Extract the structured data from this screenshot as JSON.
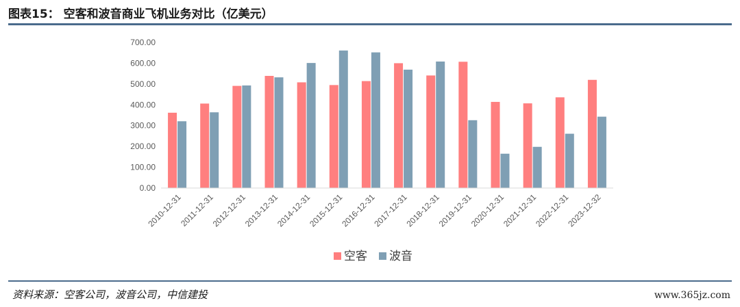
{
  "header": {
    "title": "图表15：   空客和波音商业飞机业务对比（亿美元）"
  },
  "footer": {
    "source": "资料来源：空客公司，波音公司，中信建投",
    "watermark": "www.365jz.com"
  },
  "colors": {
    "series1": "#FF7F7F",
    "series2": "#7F9FB4",
    "rule": "#4a6b8c",
    "axis": "#d9d9d9",
    "text": "#595959"
  },
  "chart_data": {
    "type": "bar",
    "title": "空客和波音商业飞机业务对比（亿美元）",
    "xlabel": "",
    "ylabel": "",
    "ylim": [
      0,
      700
    ],
    "yticks": [
      "0.00",
      "100.00",
      "200.00",
      "300.00",
      "400.00",
      "500.00",
      "600.00",
      "700.00"
    ],
    "categories": [
      "2010-12-31",
      "2011-12-31",
      "2012-12-31",
      "2013-12-31",
      "2014-12-31",
      "2015-12-31",
      "2016-12-31",
      "2017-12-31",
      "2018-12-31",
      "2019-12-31",
      "2020-12-31",
      "2021-12-31",
      "2022-12-31",
      "2023-12-32"
    ],
    "series": [
      {
        "name": "空客",
        "color": "#FF7F7F",
        "values": [
          362,
          406,
          491,
          539,
          508,
          495,
          514,
          600,
          541,
          607,
          414,
          407,
          436,
          520
        ]
      },
      {
        "name": "波音",
        "color": "#7F9FB4",
        "values": [
          321,
          364,
          493,
          532,
          601,
          661,
          652,
          569,
          608,
          326,
          165,
          198,
          261,
          343
        ]
      }
    ],
    "legend_position": "bottom"
  }
}
